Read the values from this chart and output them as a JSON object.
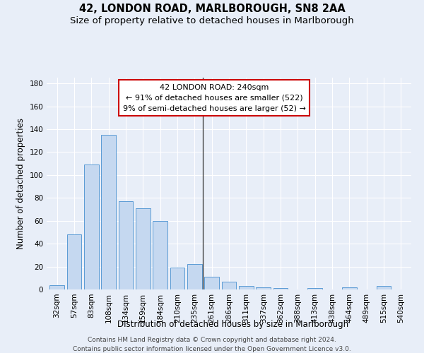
{
  "title": "42, LONDON ROAD, MARLBOROUGH, SN8 2AA",
  "subtitle": "Size of property relative to detached houses in Marlborough",
  "xlabel": "Distribution of detached houses by size in Marlborough",
  "ylabel": "Number of detached properties",
  "categories": [
    "32sqm",
    "57sqm",
    "83sqm",
    "108sqm",
    "134sqm",
    "159sqm",
    "184sqm",
    "210sqm",
    "235sqm",
    "261sqm",
    "286sqm",
    "311sqm",
    "337sqm",
    "362sqm",
    "388sqm",
    "413sqm",
    "438sqm",
    "464sqm",
    "489sqm",
    "515sqm",
    "540sqm"
  ],
  "values": [
    4,
    48,
    109,
    135,
    77,
    71,
    60,
    19,
    22,
    11,
    7,
    3,
    2,
    1,
    0,
    1,
    0,
    2,
    0,
    3,
    0
  ],
  "bar_color": "#c5d8f0",
  "bar_edge_color": "#5b9bd5",
  "vline_x": 8.5,
  "vline_color": "#333333",
  "annotation_title": "42 LONDON ROAD: 240sqm",
  "annotation_line1": "← 91% of detached houses are smaller (522)",
  "annotation_line2": "9% of semi-detached houses are larger (52) →",
  "annotation_box_color": "#ffffff",
  "annotation_box_edge_color": "#cc0000",
  "ylim": [
    0,
    185
  ],
  "yticks": [
    0,
    20,
    40,
    60,
    80,
    100,
    120,
    140,
    160,
    180
  ],
  "bg_color": "#e8eef8",
  "plot_bg_color": "#e8eef8",
  "footer1": "Contains HM Land Registry data © Crown copyright and database right 2024.",
  "footer2": "Contains public sector information licensed under the Open Government Licence v3.0.",
  "title_fontsize": 10.5,
  "subtitle_fontsize": 9.5,
  "axis_label_fontsize": 8.5,
  "tick_fontsize": 7.5,
  "annotation_fontsize": 8,
  "footer_fontsize": 6.5
}
